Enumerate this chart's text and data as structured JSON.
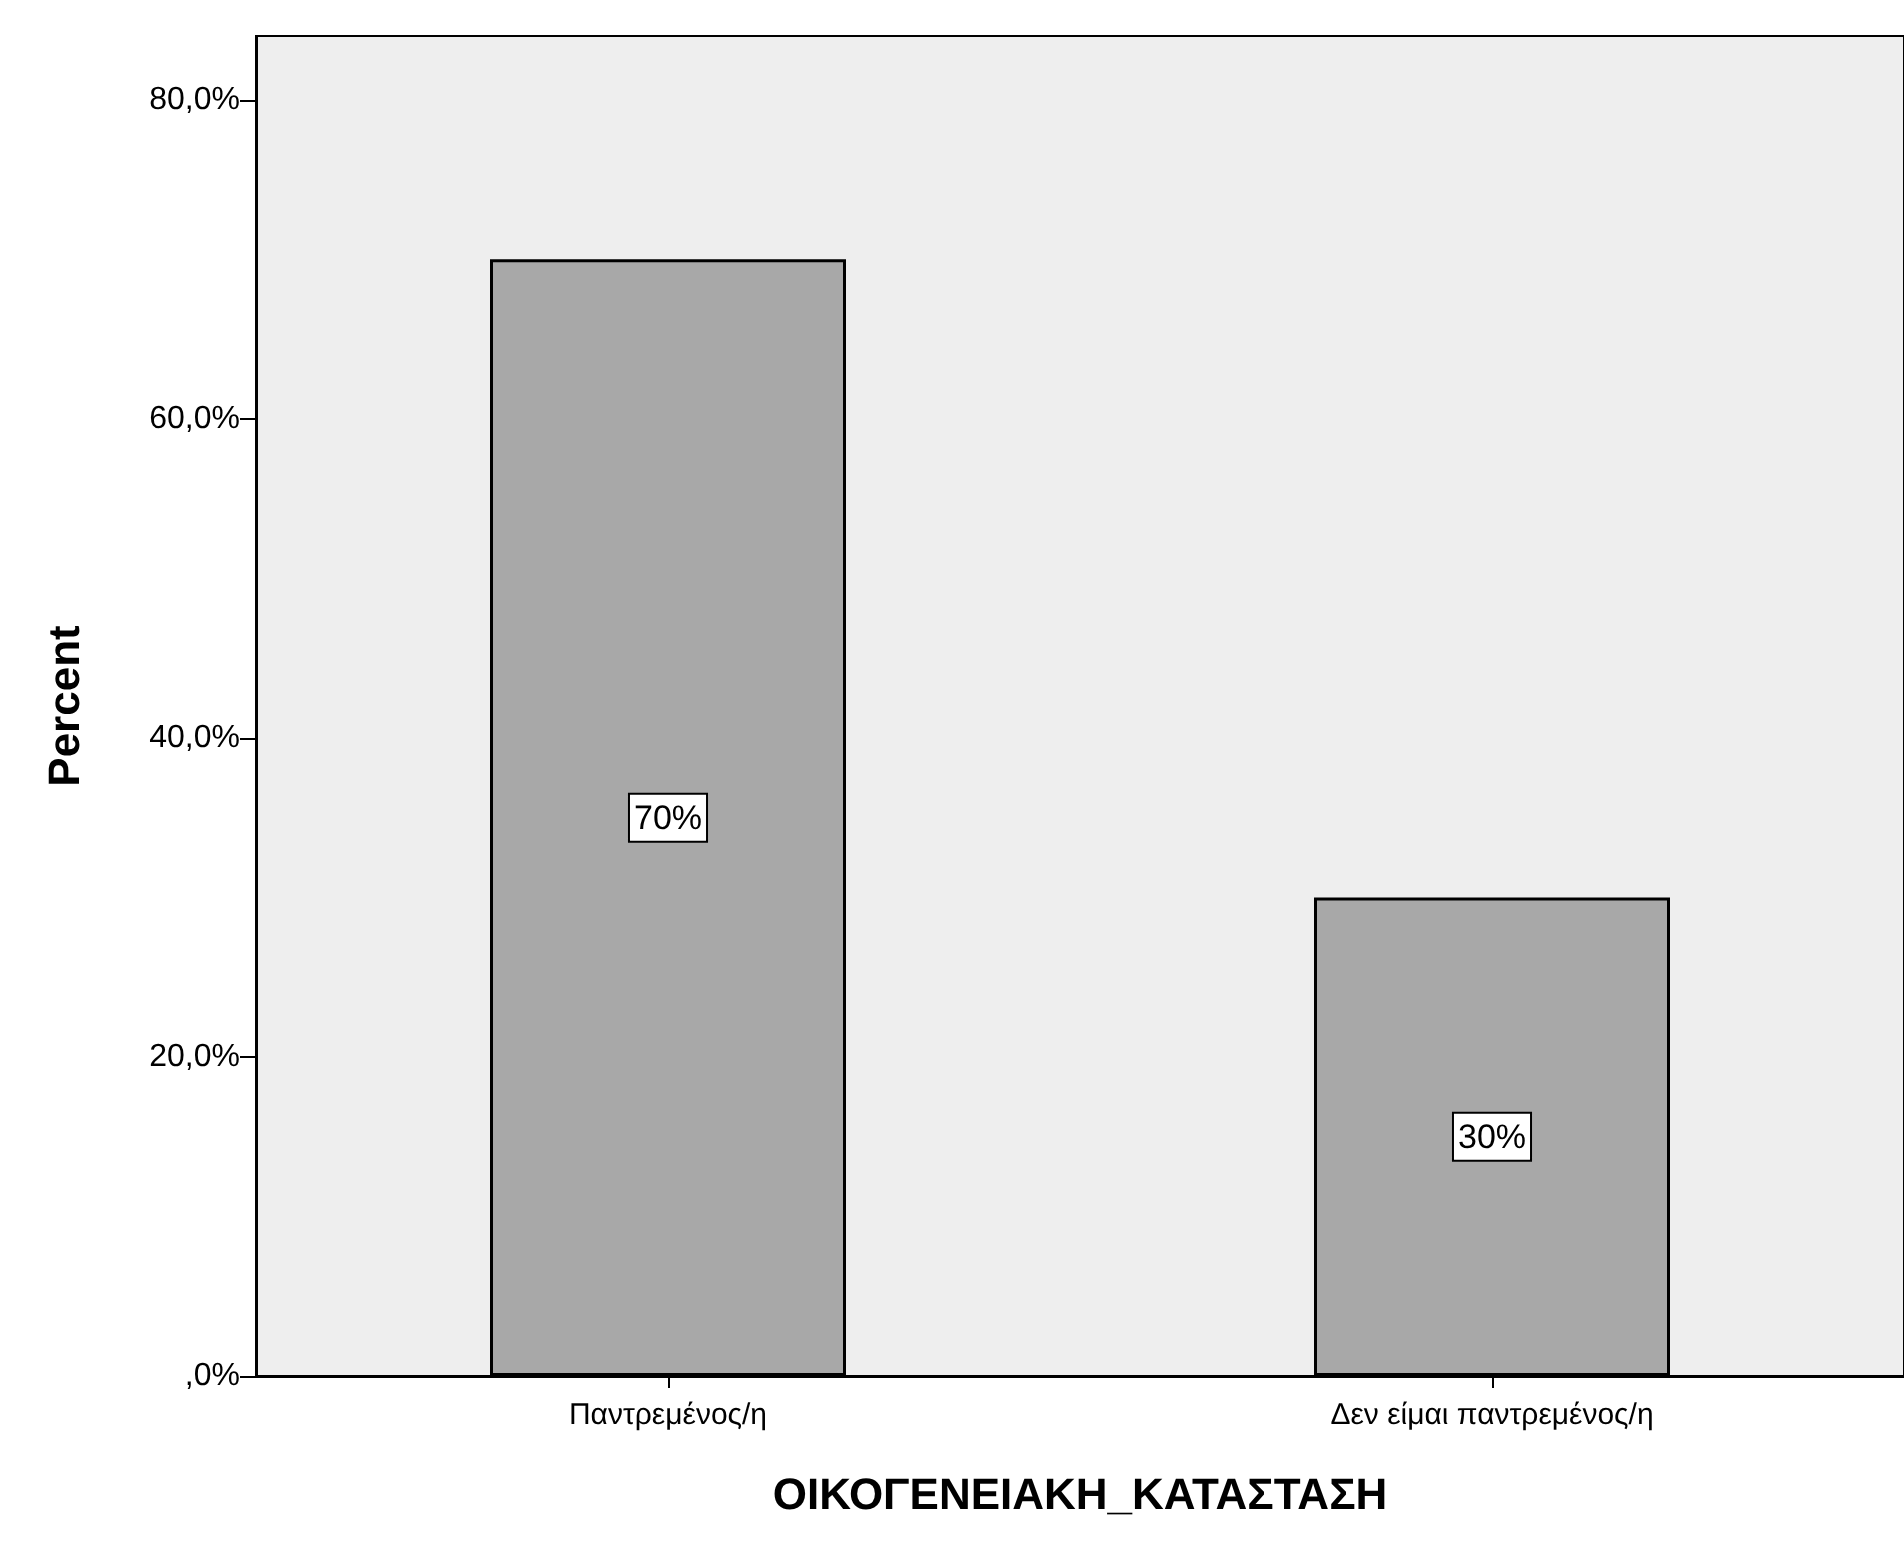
{
  "chart_data": {
    "type": "bar",
    "xlabel": "ΟΙΚΟΓΕΝΕΙΑΚΗ_ΚΑΤΑΣΤΑΣΗ",
    "ylabel": "Percent",
    "categories": [
      "Παντρεμένος/η",
      "Δεν είμαι παντρεμένος/η"
    ],
    "values": [
      70,
      30
    ],
    "color": "#a8a8a8",
    "value_labels": [
      "70%",
      "30%"
    ],
    "ylim": [
      0,
      84
    ],
    "yticks": [
      {
        "value": 0,
        "label": ",0%"
      },
      {
        "value": 20,
        "label": "20,0%"
      },
      {
        "value": 40,
        "label": "40,0%"
      },
      {
        "value": 60,
        "label": "60,0%"
      },
      {
        "value": 80,
        "label": "80,0%"
      }
    ],
    "grid": false
  }
}
